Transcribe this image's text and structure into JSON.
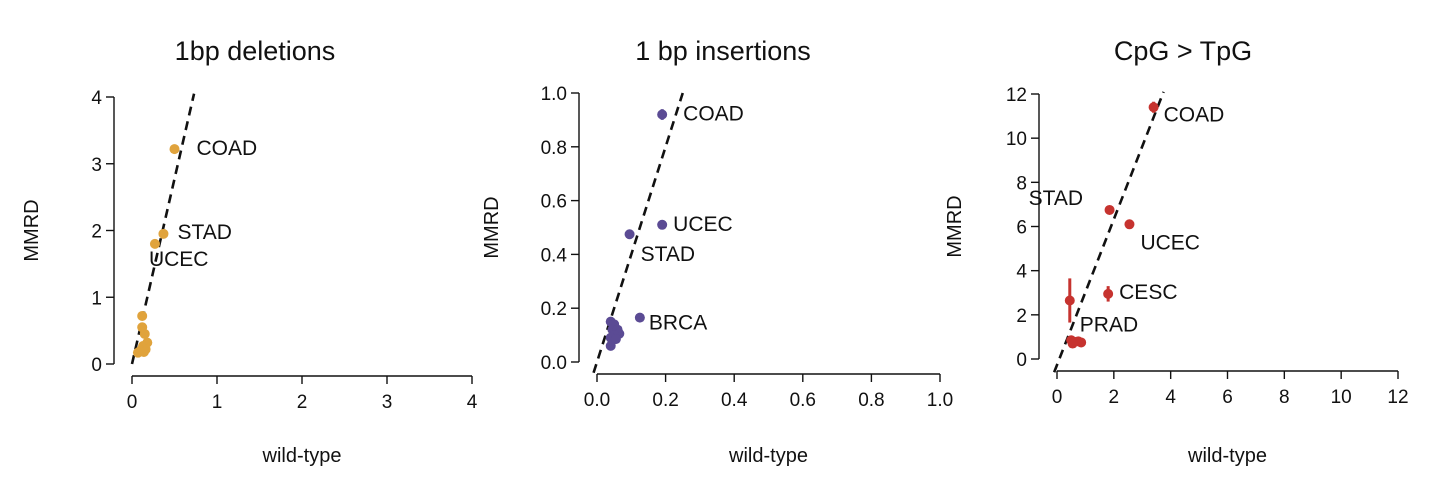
{
  "chart_data": [
    {
      "type": "scatter",
      "title": "1bp deletions",
      "xlabel": "wild-type",
      "ylabel": "MMRD",
      "xlim": [
        0,
        4
      ],
      "ylim": [
        0,
        4
      ],
      "xticks": [
        0,
        1,
        2,
        3,
        4
      ],
      "yticks": [
        0,
        1,
        2,
        3,
        4
      ],
      "xtick_labels": [
        "0",
        "1",
        "2",
        "3",
        "4"
      ],
      "ytick_labels": [
        "0",
        "1",
        "2",
        "3",
        "4"
      ],
      "color": "#e0a33c",
      "grid": false,
      "legend": "none",
      "fit_line": {
        "x1": 0.0,
        "y1": 0.0,
        "x2": 0.73,
        "y2": 4.05
      },
      "points": [
        {
          "x": 0.5,
          "y": 3.22,
          "err": 0.07,
          "label": "COAD"
        },
        {
          "x": 0.37,
          "y": 1.95,
          "label": "STAD"
        },
        {
          "x": 0.27,
          "y": 1.8,
          "label": "UCEC"
        },
        {
          "x": 0.12,
          "y": 0.72
        },
        {
          "x": 0.12,
          "y": 0.55
        },
        {
          "x": 0.15,
          "y": 0.45
        },
        {
          "x": 0.18,
          "y": 0.32
        },
        {
          "x": 0.13,
          "y": 0.27
        },
        {
          "x": 0.16,
          "y": 0.22
        },
        {
          "x": 0.1,
          "y": 0.2
        },
        {
          "x": 0.07,
          "y": 0.17
        },
        {
          "x": 0.14,
          "y": 0.18
        }
      ]
    },
    {
      "type": "scatter",
      "title": "1 bp insertions",
      "xlabel": "wild-type",
      "ylabel": "MMRD",
      "xlim": [
        0,
        1
      ],
      "ylim": [
        0,
        1
      ],
      "xticks": [
        0,
        0.2,
        0.4,
        0.6,
        0.8,
        1.0
      ],
      "yticks": [
        0,
        0.2,
        0.4,
        0.6,
        0.8,
        1.0
      ],
      "xtick_labels": [
        "0.0",
        "0.2",
        "0.4",
        "0.6",
        "0.8",
        "1.0"
      ],
      "ytick_labels": [
        "0.0",
        "0.2",
        "0.4",
        "0.6",
        "0.8",
        "1.0"
      ],
      "color": "#5b4b94",
      "grid": false,
      "legend": "none",
      "fit_line": {
        "x1": -0.01,
        "y1": -0.04,
        "x2": 0.25,
        "y2": 1.0
      },
      "points": [
        {
          "x": 0.19,
          "y": 0.92,
          "err": 0.02,
          "label": "COAD"
        },
        {
          "x": 0.19,
          "y": 0.51,
          "label": "UCEC"
        },
        {
          "x": 0.095,
          "y": 0.475,
          "label": "STAD"
        },
        {
          "x": 0.125,
          "y": 0.165,
          "label": "BRCA"
        },
        {
          "x": 0.04,
          "y": 0.15
        },
        {
          "x": 0.05,
          "y": 0.14
        },
        {
          "x": 0.045,
          "y": 0.12
        },
        {
          "x": 0.06,
          "y": 0.12
        },
        {
          "x": 0.065,
          "y": 0.105
        },
        {
          "x": 0.05,
          "y": 0.1
        },
        {
          "x": 0.04,
          "y": 0.09
        },
        {
          "x": 0.055,
          "y": 0.085
        },
        {
          "x": 0.04,
          "y": 0.06
        }
      ]
    },
    {
      "type": "scatter",
      "title": "CpG > TpG",
      "xlabel": "wild-type",
      "ylabel": "MMRD",
      "xlim": [
        0,
        12
      ],
      "ylim": [
        0,
        12
      ],
      "xticks": [
        0,
        2,
        4,
        6,
        8,
        10,
        12
      ],
      "yticks": [
        0,
        2,
        4,
        6,
        8,
        10,
        12
      ],
      "xtick_labels": [
        "0",
        "2",
        "4",
        "6",
        "8",
        "10",
        "12"
      ],
      "ytick_labels": [
        "0",
        "2",
        "4",
        "6",
        "8",
        "10",
        "12"
      ],
      "color": "#c6332f",
      "grid": false,
      "legend": "none",
      "fit_line": {
        "x1": -0.1,
        "y1": -0.6,
        "x2": 3.75,
        "y2": 12.1
      },
      "points": [
        {
          "x": 3.4,
          "y": 11.4,
          "err": 0.25,
          "label": "COAD"
        },
        {
          "x": 1.85,
          "y": 6.75,
          "label": "STAD"
        },
        {
          "x": 2.55,
          "y": 6.1,
          "label": "UCEC"
        },
        {
          "x": 1.8,
          "y": 2.95,
          "err": 0.35,
          "label": "CESC"
        },
        {
          "x": 0.45,
          "y": 2.65,
          "err": 1.0,
          "label": "PRAD"
        },
        {
          "x": 0.5,
          "y": 0.85
        },
        {
          "x": 0.6,
          "y": 0.78
        },
        {
          "x": 0.75,
          "y": 0.8
        },
        {
          "x": 0.85,
          "y": 0.75
        },
        {
          "x": 0.55,
          "y": 0.7
        }
      ]
    }
  ]
}
